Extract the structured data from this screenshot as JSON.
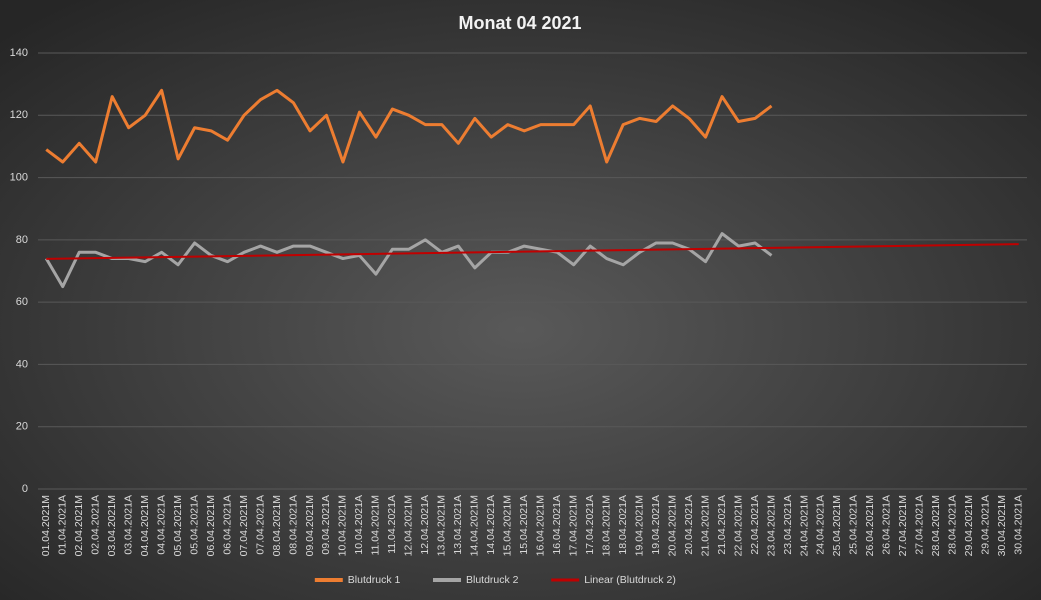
{
  "chart_data": {
    "type": "line",
    "title": "Monat 04 2021",
    "categories": [
      "01.04.2021M",
      "01.04.2021A",
      "02.04.2021M",
      "02.04.2021A",
      "03.04.2021M",
      "03.04.2021A",
      "04.04.2021M",
      "04.04.2021A",
      "05.04.2021M",
      "05.04.2021A",
      "06.04.2021M",
      "06.04.2021A",
      "07.04.2021M",
      "07.04.2021A",
      "08.04.2021M",
      "08.04.2021A",
      "09.04.2021M",
      "09.04.2021A",
      "10.04.2021M",
      "10.04.2021A",
      "11.04.2021M",
      "11.04.2021A",
      "12.04.2021M",
      "12.04.2021A",
      "13.04.2021M",
      "13.04.2021A",
      "14.04.2021M",
      "14.04.2021A",
      "15.04.2021M",
      "15.04.2021A",
      "16.04.2021M",
      "16.04.2021A",
      "17.04.2021M",
      "17.04.2021A",
      "18.04.2021M",
      "18.04.2021A",
      "19.04.2021M",
      "19.04.2021A",
      "20.04.2021M",
      "20.04.2021A",
      "21.04.2021M",
      "21.04.2021A",
      "22.04.2021M",
      "22.04.2021A",
      "23.04.2021M",
      "23.04.2021A",
      "24.04.2021M",
      "24.04.2021A",
      "25.04.2021M",
      "25.04.2021A",
      "26.04.2021M",
      "26.04.2021A",
      "27.04.2021M",
      "27.04.2021A",
      "28.04.2021M",
      "28.04.2021A",
      "29.04.2021M",
      "29.04.2021A",
      "30.04.2021M",
      "30.04.2021A"
    ],
    "series": [
      {
        "name": "Blutdruck 1",
        "color": "#ed7d31",
        "width": 3,
        "values": [
          109,
          105,
          111,
          105,
          126,
          116,
          120,
          128,
          106,
          116,
          115,
          112,
          120,
          125,
          128,
          124,
          115,
          120,
          105,
          121,
          113,
          122,
          120,
          117,
          117,
          111,
          119,
          113,
          117,
          115,
          117,
          117,
          117,
          123,
          105,
          117,
          119,
          118,
          123,
          119,
          113,
          126,
          118,
          119,
          123,
          null,
          null,
          null,
          null,
          null,
          null,
          null,
          null,
          null,
          null,
          null,
          null,
          null,
          null,
          null
        ]
      },
      {
        "name": "Blutdruck 2",
        "color": "#a5a5a5",
        "width": 3,
        "values": [
          74,
          65,
          76,
          76,
          74,
          74,
          73,
          76,
          72,
          79,
          75,
          73,
          76,
          78,
          76,
          78,
          78,
          76,
          74,
          75,
          69,
          77,
          77,
          80,
          76,
          78,
          71,
          76,
          76,
          78,
          77,
          76,
          72,
          78,
          74,
          72,
          76,
          79,
          79,
          77,
          73,
          82,
          78,
          79,
          75,
          null,
          null,
          null,
          null,
          null,
          null,
          null,
          null,
          null,
          null,
          null,
          null,
          null,
          null,
          null
        ]
      },
      {
        "name": "Linear (Blutdruck 2)",
        "color": "#c00000",
        "width": 2,
        "values": [
          73.9,
          73.98,
          74.06,
          74.14,
          74.22,
          74.3,
          74.38,
          74.46,
          74.54,
          74.62,
          74.7,
          74.78,
          74.86,
          74.94,
          75.02,
          75.1,
          75.18,
          75.26,
          75.34,
          75.42,
          75.5,
          75.58,
          75.66,
          75.74,
          75.82,
          75.9,
          75.98,
          76.06,
          76.14,
          76.22,
          76.3,
          76.38,
          76.46,
          76.54,
          76.62,
          76.7,
          76.78,
          76.86,
          76.94,
          77.02,
          77.1,
          77.18,
          77.26,
          77.34,
          77.42,
          77.5,
          77.58,
          77.66,
          77.74,
          77.82,
          77.9,
          77.98,
          78.06,
          78.14,
          78.22,
          78.3,
          78.38,
          78.46,
          78.54,
          78.62
        ]
      }
    ],
    "ylim": [
      0,
      140
    ],
    "yticks": [
      0,
      20,
      40,
      60,
      80,
      100,
      120,
      140
    ],
    "grid": true,
    "legend": "bottom"
  }
}
